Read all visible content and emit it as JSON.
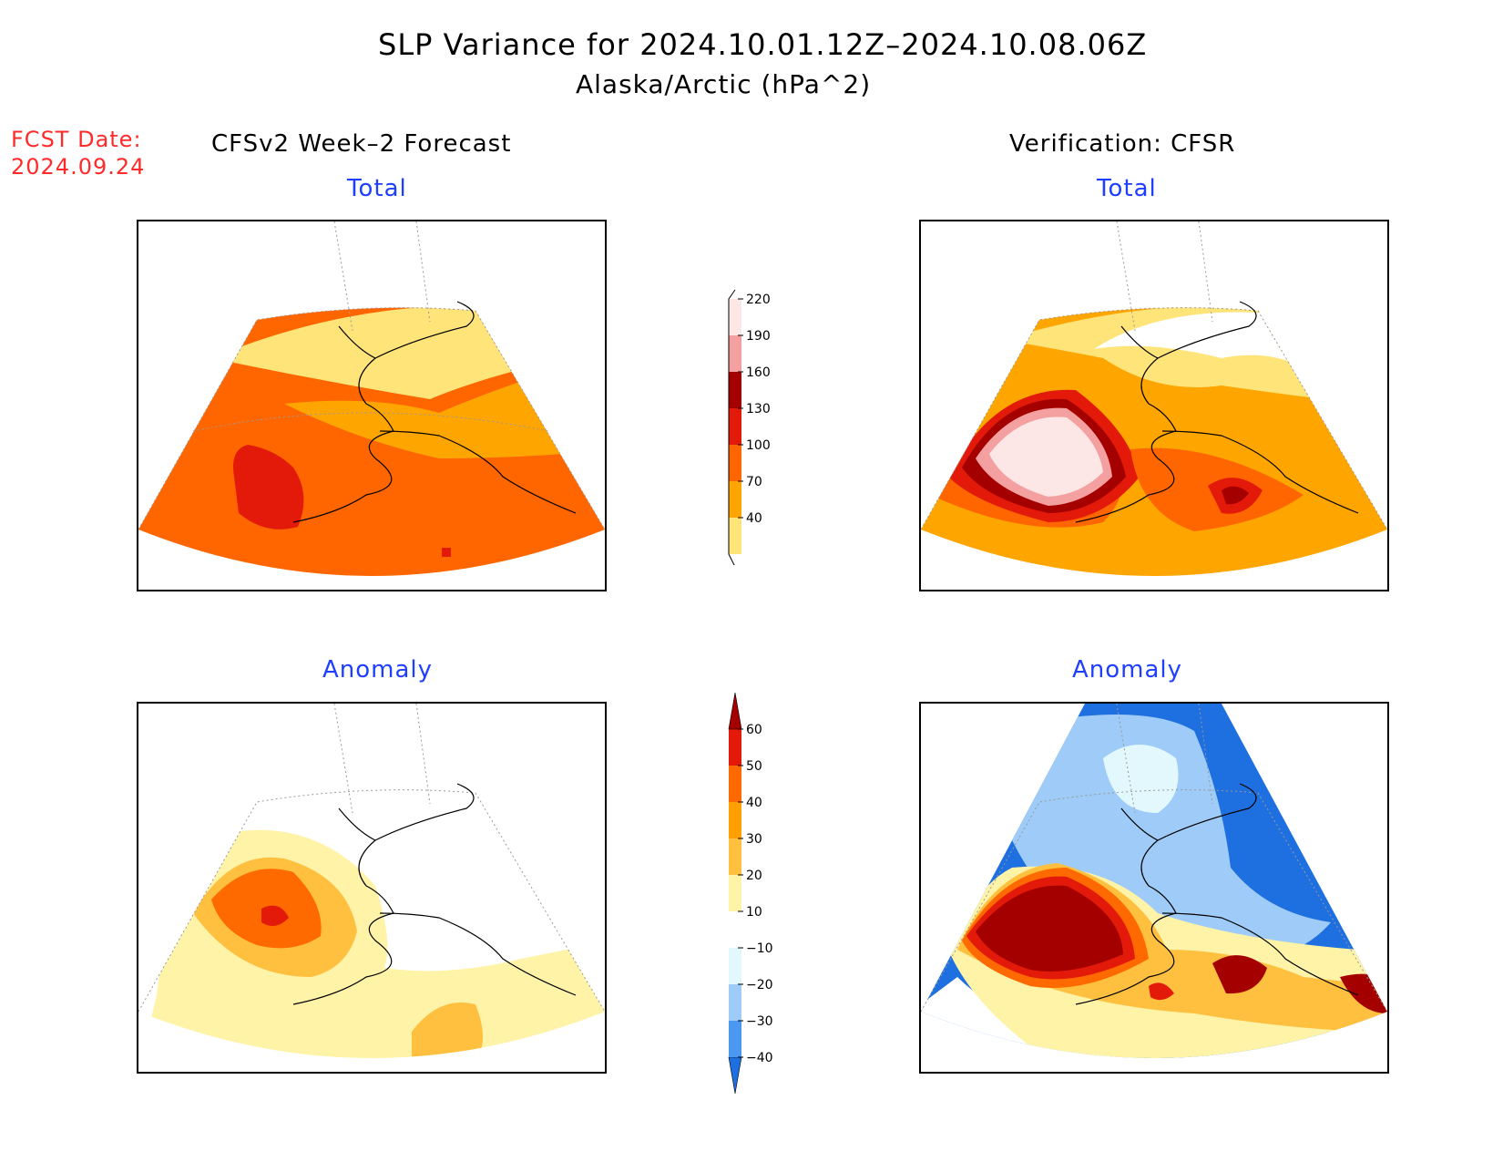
{
  "title": "SLP Variance for 2024.10.01.12Z–2024.10.08.06Z",
  "subtitle": "Alaska/Arctic (hPa^2)",
  "fcst_date_label": "FCST Date:",
  "fcst_date_value": "2024.09.24",
  "columns": {
    "forecast": "CFSv2 Week–2 Forecast",
    "verification": "Verification: CFSR"
  },
  "panels": {
    "forecast_total": {
      "title": "Total"
    },
    "verif_total": {
      "title": "Total"
    },
    "forecast_anomaly": {
      "title": "Anomaly"
    },
    "verif_anomaly": {
      "title": "Anomaly"
    }
  },
  "colorbar_total": {
    "ticks": [
      "40",
      "70",
      "100",
      "130",
      "160",
      "190",
      "220"
    ],
    "colors": [
      "#ffe47a",
      "#ffa500",
      "#ff6600",
      "#e31a0a",
      "#a50000",
      "#f4a0a0",
      "#fde6e6"
    ]
  },
  "colorbar_anomaly": {
    "ticks": [
      "−40",
      "−30",
      "−20",
      "−10",
      "10",
      "20",
      "30",
      "40",
      "50",
      "60"
    ],
    "colors": [
      "#1e6fe0",
      "#4a98ef",
      "#9ecbf7",
      "#e2f8fd",
      "#ffffff",
      "#fff3a8",
      "#ffc040",
      "#ffa000",
      "#ff6a00",
      "#e31a0a",
      "#a50000"
    ]
  },
  "colors": {
    "title_red": "#ff2a2a",
    "panel_blue": "#1f3fff"
  }
}
